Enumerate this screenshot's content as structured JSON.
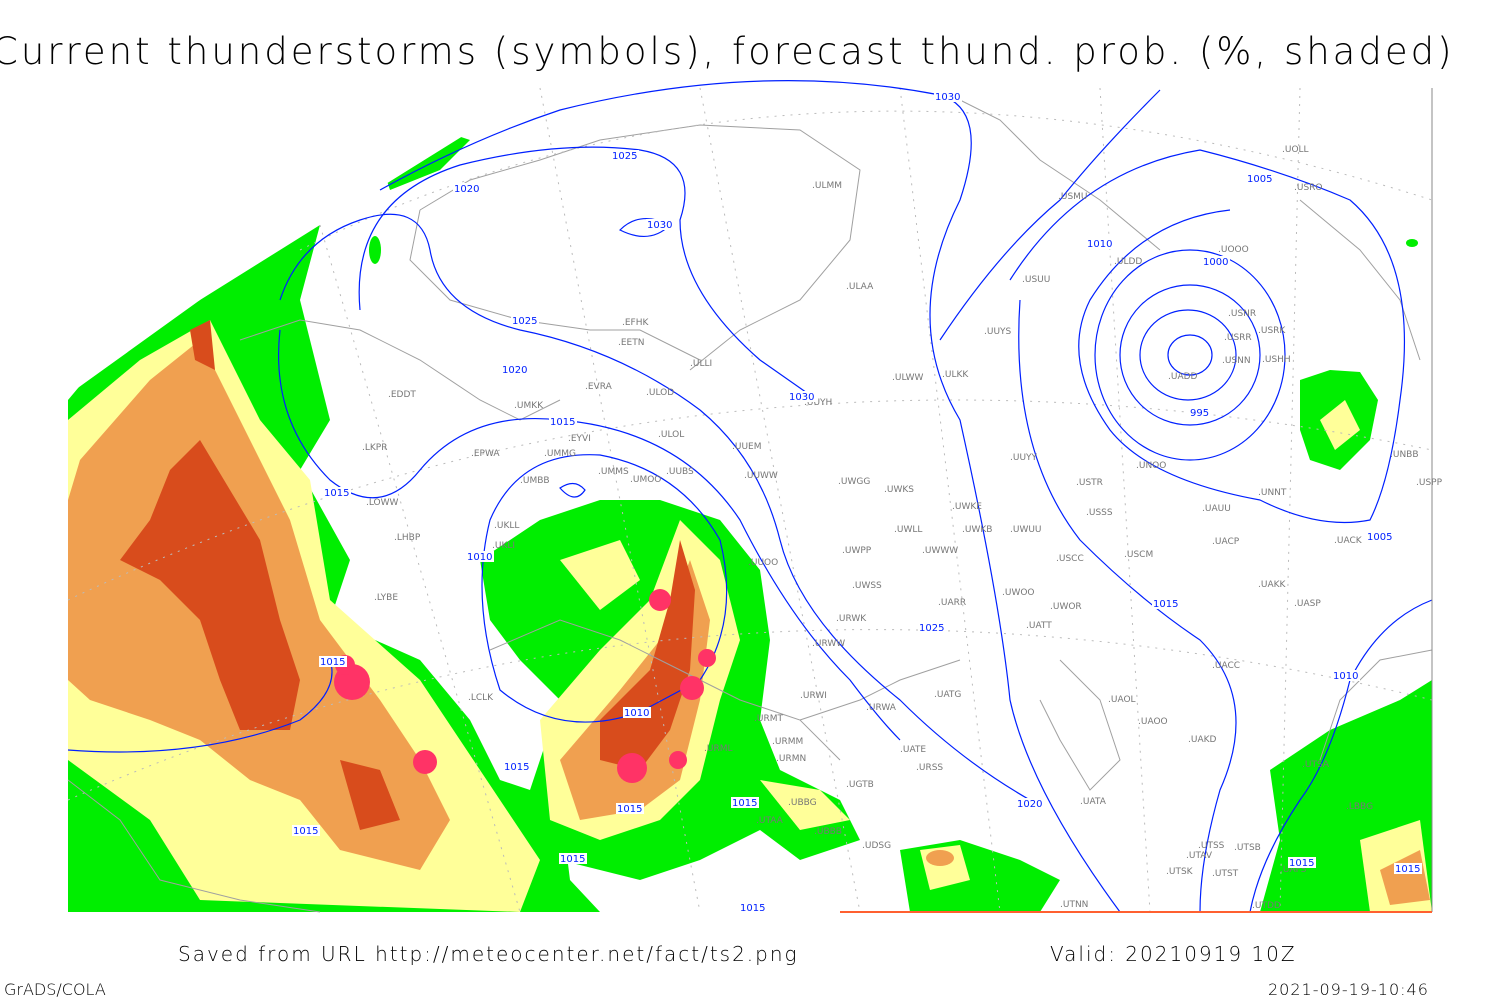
{
  "title": "Current thunderstorms (symbols), forecast thund. prob. (%, shaded)",
  "footer": {
    "saved_from": "Saved from URL http://meteocenter.net/fact/ts2.png",
    "valid": "Valid: 20210919 10Z",
    "software": "GrADS/COLA",
    "timestamp": "2021-09-19-10:46"
  },
  "colors": {
    "isobar": "#0020ff",
    "coastline": "#a0a0a0",
    "prob_low": "#00ee00",
    "prob_mid": "#ffff99",
    "prob_high": "#f0a050",
    "prob_max": "#d84c1c",
    "thunderstorm_symbol": "#ff3366"
  },
  "isobar_labels": [
    "1030",
    "1025",
    "1020",
    "1030",
    "1025",
    "1020",
    "1015",
    "1015",
    "1010",
    "1030",
    "1015",
    "1010",
    "1015",
    "1015",
    "1015",
    "1015",
    "1015",
    "1015",
    "1025",
    "1020",
    "1015",
    "1010",
    "1005",
    "1000",
    "995",
    "1005",
    "1010",
    "1015",
    "1015"
  ],
  "stations": [
    "ULMM",
    "ULAA",
    "EFHK",
    "EETN",
    "ULLI",
    "EVRA",
    "ULOD",
    "UMKK",
    "EDDT",
    "EYVI",
    "ULOL",
    "UUEM",
    "EPWA",
    "UMMG",
    "LKPR",
    "UMMS",
    "UMOO",
    "UUBS",
    "UUWW",
    "UMBB",
    "LOWW",
    "UKLL",
    "UKLI",
    "LHBP",
    "UUOO",
    "LYBE",
    "UWGG",
    "UWKS",
    "UWKE",
    "UWKB",
    "UWUU",
    "UWLL",
    "UWWW",
    "UWPP",
    "UWSS",
    "UARR",
    "URWK",
    "UWOO",
    "UWOR",
    "UATT",
    "URWW",
    "URWI",
    "UATG",
    "URMT",
    "URWA",
    "URMM",
    "URMN",
    "UATE",
    "URSS",
    "URML",
    "UGTB",
    "UBBG",
    "UBBB",
    "UDSG",
    "UTAA",
    "UTNN",
    "UATA",
    "UAOL",
    "UAOO",
    "UAKD",
    "UACC",
    "UAKK",
    "UASP",
    "UACK",
    "UACP",
    "UAUU",
    "USCM",
    "USCC",
    "USSS",
    "USTR",
    "UNOO",
    "UNNT",
    "UNBB",
    "USPP",
    "UUYY",
    "ULKK",
    "ULWW",
    "UUYH",
    "UUYS",
    "USUU",
    "ULDD",
    "USMU",
    "UOOO",
    "UOLL",
    "USRO",
    "USNR",
    "USRK",
    "USRR",
    "USNN",
    "USHH",
    "UADD",
    "UTSA",
    "UTSS",
    "UTSB",
    "UTAV",
    "UTSK",
    "UTST",
    "UTDD",
    "UAFS",
    "LBBG",
    "LCLK"
  ]
}
